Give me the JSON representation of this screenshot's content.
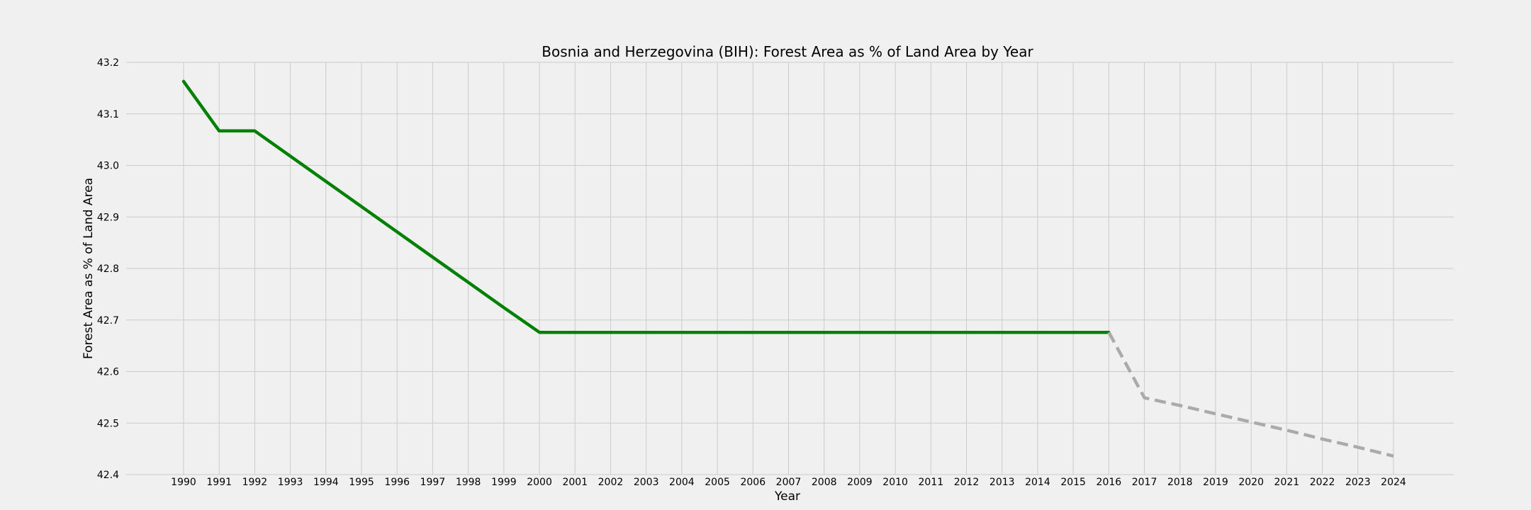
{
  "chart_data": {
    "type": "line",
    "title": "Bosnia and Herzegovina (BIH): Forest Area as % of Land Area by Year",
    "xlabel": "Year",
    "ylabel": "Forest Area as % of Land Area",
    "ylim": [
      42.4,
      43.2
    ],
    "y_ticks": [
      "42.4",
      "42.5",
      "42.6",
      "42.7",
      "42.8",
      "42.9",
      "43.0",
      "43.1",
      "43.2"
    ],
    "x_ticks": [
      "1990",
      "1991",
      "1992",
      "1993",
      "1994",
      "1995",
      "1996",
      "1997",
      "1998",
      "1999",
      "2000",
      "2001",
      "2002",
      "2003",
      "2004",
      "2005",
      "2006",
      "2007",
      "2008",
      "2009",
      "2010",
      "2011",
      "2012",
      "2013",
      "2014",
      "2015",
      "2016",
      "2017",
      "2018",
      "2019",
      "2020",
      "2021",
      "2022",
      "2023",
      "2024"
    ],
    "grid": true,
    "colors": {
      "actual": "#008000",
      "projected": "#aaaaaa",
      "background": "#f0f0f0",
      "grid": "#cbcbcb"
    },
    "series": [
      {
        "style": "solid",
        "x": [
          1990,
          1991,
          1992,
          1993,
          1994,
          1995,
          1996,
          1997,
          1998,
          1999,
          2000,
          2001,
          2002,
          2003,
          2004,
          2005,
          2006,
          2007,
          2008,
          2009,
          2010,
          2011,
          2012,
          2013,
          2014,
          2015,
          2016
        ],
        "values": [
          43.163,
          43.067,
          43.067,
          43.018,
          42.969,
          42.92,
          42.871,
          42.822,
          42.773,
          42.724,
          42.676,
          42.676,
          42.676,
          42.676,
          42.676,
          42.676,
          42.676,
          42.676,
          42.676,
          42.676,
          42.676,
          42.676,
          42.676,
          42.676,
          42.676,
          42.676,
          42.676
        ]
      },
      {
        "style": "dashed",
        "x": [
          2016,
          2017,
          2018,
          2019,
          2020,
          2021,
          2022,
          2023,
          2024
        ],
        "values": [
          42.676,
          42.549,
          42.534,
          42.518,
          42.502,
          42.486,
          42.469,
          42.453,
          42.436
        ]
      }
    ]
  }
}
